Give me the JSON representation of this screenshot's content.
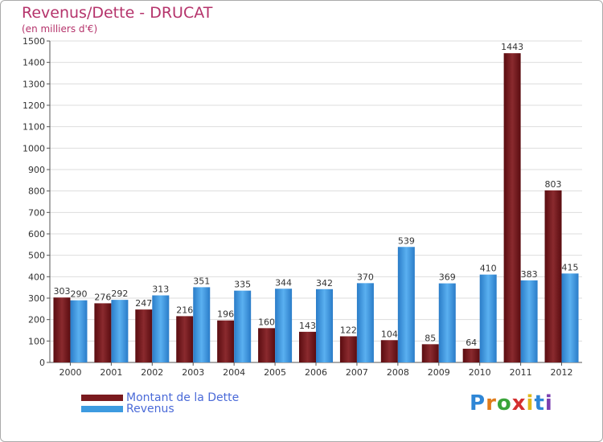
{
  "chart_data": {
    "type": "bar",
    "title": "Revenus/Dette - DRUCAT",
    "subtitle": "(en milliers d'€)",
    "categories": [
      "2000",
      "2001",
      "2002",
      "2003",
      "2004",
      "2005",
      "2006",
      "2007",
      "2008",
      "2009",
      "2010",
      "2011",
      "2012"
    ],
    "series": [
      {
        "name": "Montant de la Dette",
        "color": "#7a1a1e",
        "values": [
          303,
          276,
          247,
          216,
          196,
          160,
          143,
          122,
          104,
          85,
          64,
          1443,
          803
        ]
      },
      {
        "name": "Revenus",
        "color": "#3d9be0",
        "values": [
          290,
          292,
          313,
          351,
          335,
          344,
          342,
          370,
          539,
          369,
          410,
          383,
          415
        ]
      }
    ],
    "ylim": [
      0,
      1500
    ],
    "yticks": [
      0,
      100,
      200,
      300,
      400,
      500,
      600,
      700,
      800,
      900,
      1000,
      1100,
      1200,
      1300,
      1400,
      1500
    ],
    "legend_position": "bottom-left"
  },
  "logo": {
    "letters": [
      "P",
      "r",
      "o",
      "x",
      "i",
      "t",
      "i"
    ],
    "colors": [
      "#2e86d6",
      "#e07b1a",
      "#3aa43a",
      "#d42f2f",
      "#e0b81a",
      "#2e86d6",
      "#7b3fb0"
    ]
  }
}
